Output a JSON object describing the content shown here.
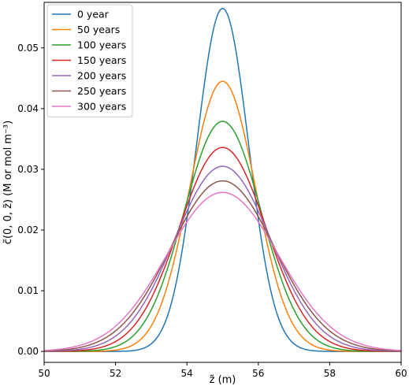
{
  "chart_data": {
    "type": "line",
    "xlabel": "z̃ (m)",
    "ylabel": "c̃(0, 0, z̃) (M or mol m⁻³)",
    "xlim": [
      50,
      60
    ],
    "ylim": [
      -0.0018,
      0.0575
    ],
    "xticks": [
      "50",
      "52",
      "54",
      "56",
      "58",
      "60"
    ],
    "yticks": [
      "0.00",
      "0.01",
      "0.02",
      "0.03",
      "0.04",
      "0.05"
    ],
    "grid": false,
    "legend_position": "top-left",
    "series": [
      {
        "name": "0 year",
        "color": "#1f77b4",
        "peak": 0.0565,
        "peak_x": 55.0
      },
      {
        "name": "50 years",
        "color": "#ff7f0e",
        "peak": 0.0445,
        "peak_x": 55.0
      },
      {
        "name": "100 years",
        "color": "#2ca02c",
        "peak": 0.0379,
        "peak_x": 55.0
      },
      {
        "name": "150 years",
        "color": "#d62728",
        "peak": 0.0336,
        "peak_x": 55.0
      },
      {
        "name": "200 years",
        "color": "#9467bd",
        "peak": 0.0305,
        "peak_x": 55.0
      },
      {
        "name": "250 years",
        "color": "#8c564b",
        "peak": 0.0281,
        "peak_x": 55.0
      },
      {
        "name": "300 years",
        "color": "#e377c2",
        "peak": 0.0262,
        "peak_x": 55.0
      }
    ]
  }
}
